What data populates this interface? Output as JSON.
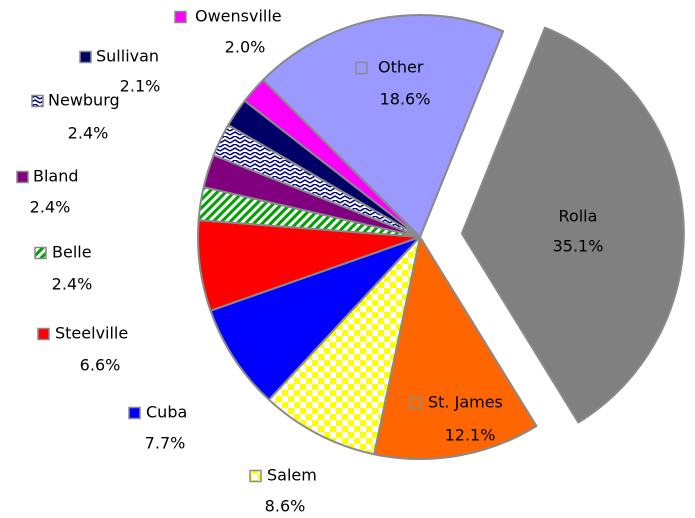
{
  "chart_data": {
    "type": "pie",
    "categories": [
      "Rolla",
      "St. James",
      "Salem",
      "Cuba",
      "Steelville",
      "Belle",
      "Bland",
      "Newburg",
      "Sullivan",
      "Owensville",
      "Other"
    ],
    "values": [
      35.1,
      12.1,
      8.6,
      7.7,
      6.6,
      2.4,
      2.4,
      2.4,
      2.1,
      2.0,
      18.6
    ],
    "value_labels": [
      "35.1%",
      "12.1%",
      "8.6%",
      "7.7%",
      "6.6%",
      "2.4%",
      "2.4%",
      "2.4%",
      "2.1%",
      "2.0%",
      "18.6%"
    ],
    "colors": [
      "#808080",
      "#ff6600",
      "#ffff00",
      "#0000ff",
      "#ff0000",
      "#00a000",
      "#800080",
      "#000080",
      "#000066",
      "#ff00ff",
      "#9999ff"
    ],
    "patterns": [
      null,
      null,
      "checker",
      null,
      null,
      "stripes",
      null,
      "zigzag",
      null,
      null,
      null
    ],
    "explode": [
      true,
      false,
      false,
      false,
      false,
      false,
      false,
      false,
      false,
      false,
      false
    ]
  }
}
